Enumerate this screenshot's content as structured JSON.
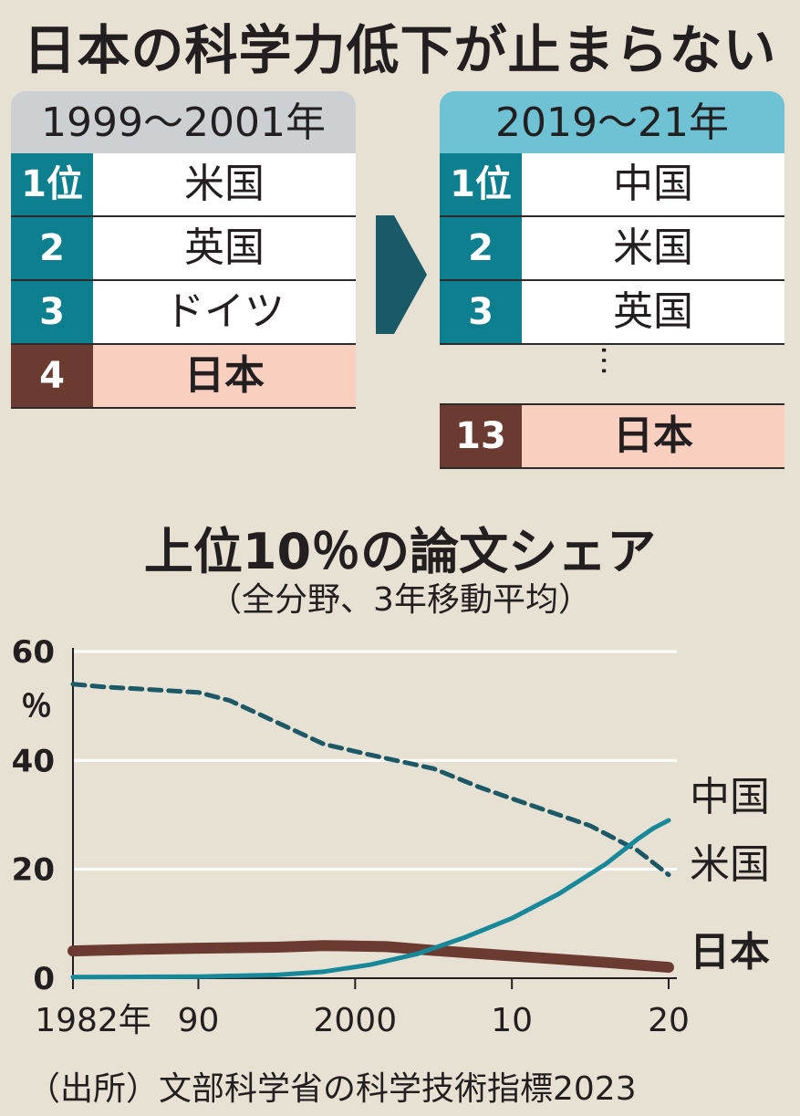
{
  "title": "日本の科学力低下が止まらない",
  "ranking_left": {
    "header": "1999〜2001年",
    "rows": [
      {
        "rank": "1位",
        "country": "米国"
      },
      {
        "rank": "2",
        "country": "英国"
      },
      {
        "rank": "3",
        "country": "ドイツ"
      },
      {
        "rank": "4",
        "country": "日本"
      }
    ]
  },
  "ranking_right": {
    "header": "2019〜21年",
    "rows": [
      {
        "rank": "1位",
        "country": "中国"
      },
      {
        "rank": "2",
        "country": "米国"
      },
      {
        "rank": "3",
        "country": "英国"
      }
    ],
    "ellipsis": "…",
    "japan": {
      "rank": "13",
      "country": "日本"
    }
  },
  "colors": {
    "background": "#e6e1d3",
    "rank_teal": "#0e7f8f",
    "rank_brown": "#6b3a30",
    "japan_row": "#f9cfbf",
    "header_left": "#ccd0d2",
    "header_right": "#6ec2d4",
    "china_line": "#17879a",
    "usa_line": "#1c5866",
    "japan_line": "#6b3a30"
  },
  "chart_data": {
    "type": "line",
    "title": "上位10％の論文シェア",
    "subtitle": "（全分野、3年移動平均）",
    "y_unit": "％",
    "ylim": [
      0,
      60
    ],
    "xlim": [
      1982,
      2020
    ],
    "y_ticks": [
      "0",
      "20",
      "40",
      "60"
    ],
    "x_ticks": [
      {
        "value": 1982,
        "label": "1982年"
      },
      {
        "value": 1990,
        "label": "90"
      },
      {
        "value": 2000,
        "label": "2000"
      },
      {
        "value": 2010,
        "label": "10"
      },
      {
        "value": 2020,
        "label": "20"
      }
    ],
    "grid": true,
    "series": [
      {
        "name": "米国",
        "style": "dashed",
        "x": [
          1982,
          1984,
          1987,
          1990,
          1992,
          1995,
          1998,
          2001,
          2005,
          2008,
          2012,
          2015,
          2018,
          2020
        ],
        "y": [
          54,
          53.5,
          53,
          52.5,
          51,
          47,
          43,
          41,
          38.5,
          35,
          31,
          28,
          23.5,
          19
        ]
      },
      {
        "name": "中国",
        "style": "solid",
        "x": [
          1982,
          1990,
          1995,
          1998,
          2001,
          2004,
          2007,
          2010,
          2013,
          2016,
          2018,
          2019,
          2020
        ],
        "y": [
          0.2,
          0.3,
          0.6,
          1.2,
          2.5,
          4.5,
          7.5,
          11,
          15.5,
          21,
          25.5,
          27.5,
          29
        ]
      },
      {
        "name": "日本",
        "style": "solid-thick",
        "x": [
          1982,
          1986,
          1990,
          1995,
          1998,
          2002,
          2005,
          2008,
          2012,
          2016,
          2020
        ],
        "y": [
          5,
          5.3,
          5.5,
          5.7,
          6,
          5.8,
          5.1,
          4.5,
          3.7,
          2.9,
          2
        ]
      }
    ]
  },
  "source": "（出所）文部科学省の科学技術指標2023"
}
